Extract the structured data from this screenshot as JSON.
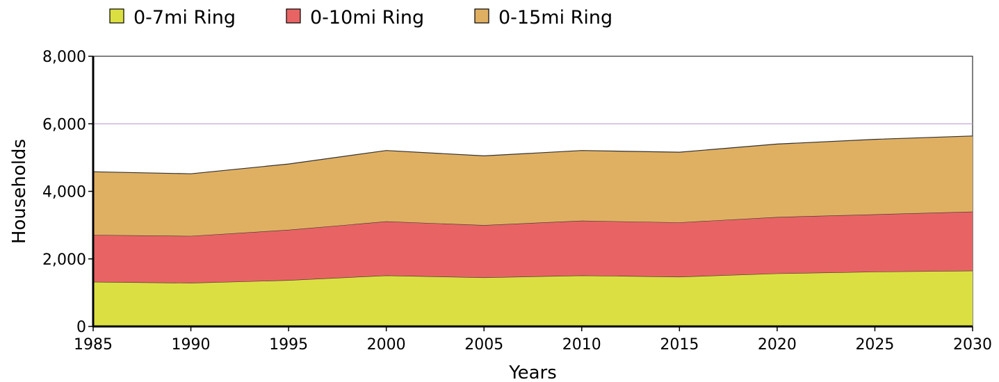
{
  "chart_data": {
    "type": "area",
    "stacked": true,
    "x": [
      1985,
      1990,
      1995,
      2000,
      2005,
      2010,
      2015,
      2020,
      2025,
      2030
    ],
    "series": [
      {
        "name": "0-7mi Ring",
        "color": "#dcdf41",
        "values": [
          1320,
          1290,
          1370,
          1510,
          1450,
          1510,
          1470,
          1570,
          1620,
          1650
        ]
      },
      {
        "name": "0-10mi Ring",
        "color": "#e86464",
        "values": [
          1390,
          1390,
          1490,
          1600,
          1550,
          1620,
          1610,
          1670,
          1700,
          1750
        ]
      },
      {
        "name": "0-15mi Ring",
        "color": "#e0b062",
        "values": [
          1870,
          1840,
          1950,
          2100,
          2050,
          2080,
          2080,
          2160,
          2220,
          2240
        ]
      }
    ],
    "xlabel": "Years",
    "ylabel": "Households",
    "xlim": [
      1985,
      2030
    ],
    "ylim": [
      0,
      8000
    ],
    "yticks": [
      0,
      2000,
      4000,
      6000,
      8000
    ],
    "ytick_labels": [
      "0",
      "2,000",
      "4,000",
      "6,000",
      "8,000"
    ],
    "xtick_labels": [
      "1985",
      "1990",
      "1995",
      "2000",
      "2005",
      "2010",
      "2015",
      "2020",
      "2025",
      "2030"
    ],
    "gridlines": [
      6000
    ],
    "legend_position": "top-left"
  }
}
